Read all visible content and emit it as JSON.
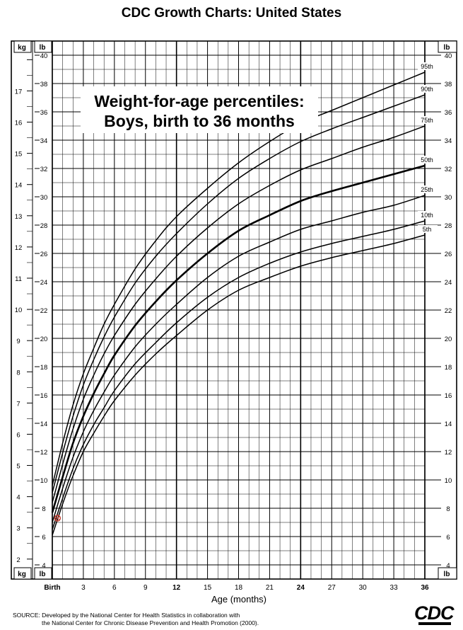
{
  "page_title": "CDC Growth Charts: United States",
  "source_note": {
    "line1": "SOURCE: Developed by the National Center for Health Statistics in collaboration with",
    "line2": "the National Center for Chronic Disease Prevention and Health Promotion (2000)."
  },
  "logo_text": "CDC",
  "colors": {
    "grid": "#000000",
    "curve": "#000000",
    "marker": "#c0392b",
    "background": "#ffffff"
  },
  "chart_data": {
    "type": "line",
    "title_line1": "Weight-for-age percentiles:",
    "title_line2": "Boys, birth to 36 months",
    "xlabel": "Age (months)",
    "x_unit_labels": {
      "left_kg": "kg",
      "left_lb": "lb",
      "right_lb": "lb"
    },
    "xlim": [
      0,
      36
    ],
    "ylim_lb": [
      3,
      41
    ],
    "ylim_kg": [
      1.36,
      18.6
    ],
    "x_ticks": [
      {
        "value": 0,
        "label": "Birth",
        "bold": true
      },
      {
        "value": 3,
        "label": "3",
        "bold": false
      },
      {
        "value": 6,
        "label": "6",
        "bold": false
      },
      {
        "value": 9,
        "label": "9",
        "bold": false
      },
      {
        "value": 12,
        "label": "12",
        "bold": true
      },
      {
        "value": 15,
        "label": "15",
        "bold": false
      },
      {
        "value": 18,
        "label": "18",
        "bold": false
      },
      {
        "value": 21,
        "label": "21",
        "bold": false
      },
      {
        "value": 24,
        "label": "24",
        "bold": true
      },
      {
        "value": 27,
        "label": "27",
        "bold": false
      },
      {
        "value": 30,
        "label": "30",
        "bold": false
      },
      {
        "value": 33,
        "label": "33",
        "bold": false
      },
      {
        "value": 36,
        "label": "36",
        "bold": true
      }
    ],
    "lb_ticks": [
      "4",
      "6",
      "8",
      "10",
      "12",
      "14",
      "16",
      "18",
      "20",
      "22",
      "24",
      "26",
      "28",
      "30",
      "32",
      "34",
      "36",
      "38",
      "40"
    ],
    "kg_ticks": [
      "2",
      "3",
      "4",
      "5",
      "6",
      "7",
      "8",
      "9",
      "10",
      "11",
      "12",
      "13",
      "14",
      "15",
      "16",
      "17"
    ],
    "x": [
      0,
      1,
      2,
      3,
      4,
      5,
      6,
      8,
      10,
      12,
      15,
      18,
      21,
      24,
      27,
      30,
      33,
      36
    ],
    "series": [
      {
        "name": "95th",
        "bold": false,
        "values": [
          9.6,
          12.6,
          15.3,
          17.5,
          19.3,
          21.0,
          22.4,
          24.9,
          26.9,
          28.6,
          30.6,
          32.4,
          33.9,
          35.2,
          36.1,
          37.0,
          37.9,
          38.8
        ]
      },
      {
        "name": "90th",
        "bold": false,
        "values": [
          9.1,
          11.9,
          14.5,
          16.7,
          18.5,
          20.1,
          21.5,
          23.9,
          25.8,
          27.4,
          29.5,
          31.3,
          32.7,
          33.9,
          34.8,
          35.6,
          36.4,
          37.2
        ]
      },
      {
        "name": "75th",
        "bold": false,
        "values": [
          8.4,
          11.1,
          13.6,
          15.7,
          17.4,
          18.9,
          20.2,
          22.4,
          24.2,
          25.8,
          27.8,
          29.5,
          30.8,
          31.9,
          32.7,
          33.5,
          34.2,
          35.0
        ]
      },
      {
        "name": "50th",
        "bold": true,
        "values": [
          7.7,
          10.2,
          12.6,
          14.5,
          16.1,
          17.5,
          18.8,
          20.9,
          22.6,
          24.1,
          26.0,
          27.6,
          28.7,
          29.7,
          30.4,
          31.0,
          31.6,
          32.2
        ]
      },
      {
        "name": "25th",
        "bold": false,
        "values": [
          7.0,
          9.4,
          11.6,
          13.4,
          14.9,
          16.2,
          17.4,
          19.4,
          21.0,
          22.4,
          24.3,
          25.8,
          26.8,
          27.7,
          28.3,
          28.9,
          29.4,
          30.1
        ]
      },
      {
        "name": "10th",
        "bold": false,
        "values": [
          6.5,
          8.7,
          10.8,
          12.5,
          13.9,
          15.1,
          16.3,
          18.2,
          19.7,
          21.1,
          22.9,
          24.3,
          25.3,
          26.1,
          26.7,
          27.2,
          27.7,
          28.3
        ]
      },
      {
        "name": "5th",
        "bold": false,
        "values": [
          6.1,
          8.3,
          10.3,
          12.0,
          13.3,
          14.5,
          15.6,
          17.4,
          18.9,
          20.2,
          22.0,
          23.4,
          24.3,
          25.1,
          25.7,
          26.2,
          26.7,
          27.3
        ]
      }
    ],
    "marker": {
      "x": 0.5,
      "y": 7.3
    }
  }
}
